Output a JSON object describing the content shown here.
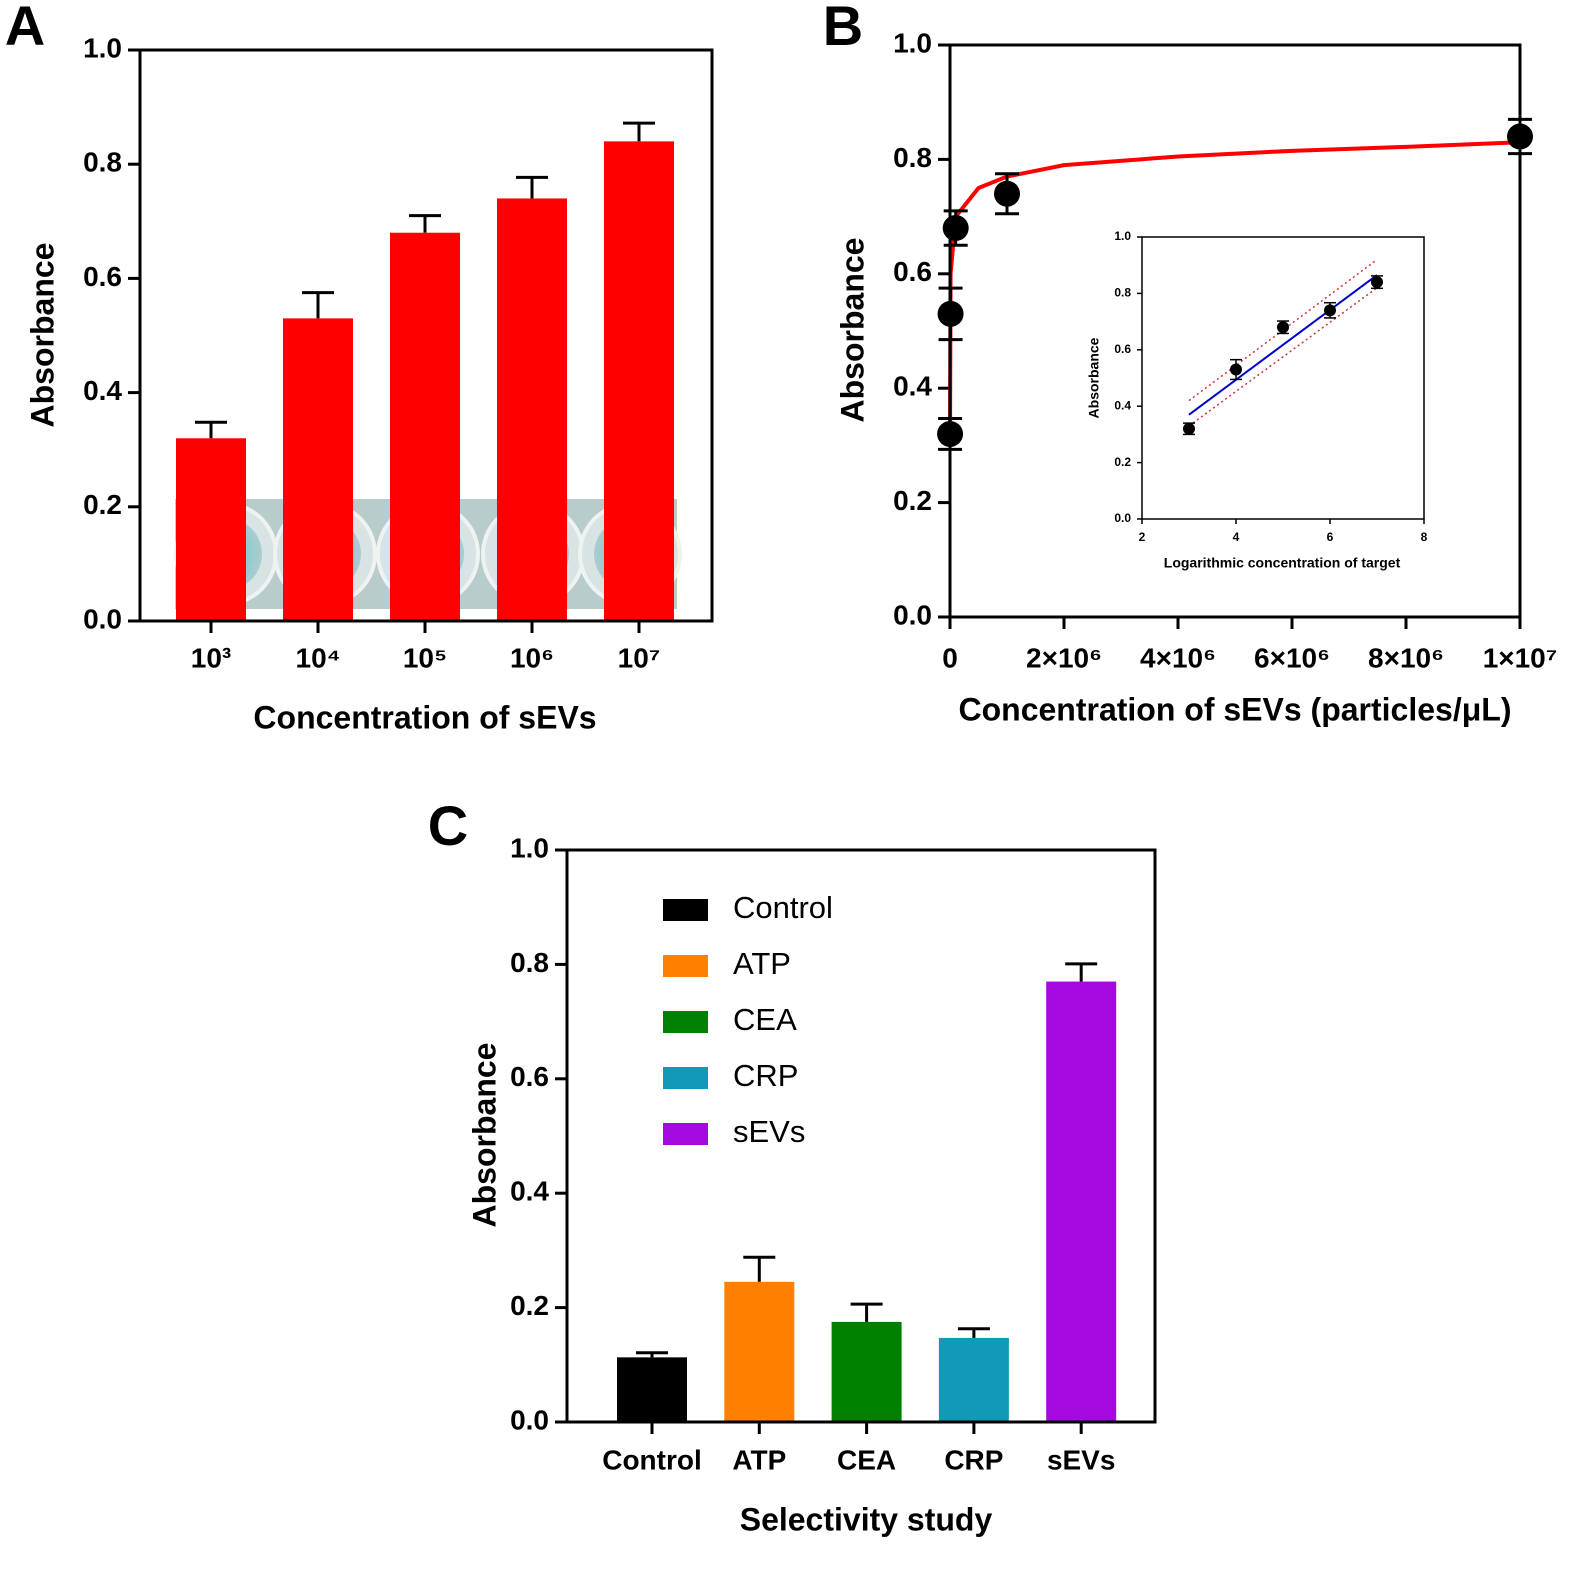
{
  "chart_data": [
    {
      "type": "bar",
      "panel": "A",
      "categories": [
        "10³",
        "10⁴",
        "10⁵",
        "10⁶",
        "10⁷"
      ],
      "values": [
        0.32,
        0.53,
        0.68,
        0.74,
        0.84
      ],
      "errors": [
        0.028,
        0.045,
        0.03,
        0.037,
        0.032
      ],
      "color": "#ff0000",
      "ylim": [
        0,
        1
      ],
      "yticks": [
        {
          "value": 0,
          "label": "0.0"
        },
        0.2,
        0.4,
        0.6,
        0.8,
        {
          "value": 1,
          "label": "1.0"
        }
      ],
      "xlabel": "Concentration of sEVs",
      "ylabel": "Absorbance"
    },
    {
      "type": "scatter",
      "panel": "B",
      "x": [
        1000,
        10000,
        100000,
        1000000,
        10000000
      ],
      "values": [
        0.32,
        0.53,
        0.68,
        0.74,
        0.84
      ],
      "errors": [
        0.027,
        0.045,
        0.03,
        0.035,
        0.03
      ],
      "color": "#000000",
      "fit": {
        "color": "#ff0000",
        "x": [
          1000,
          10000,
          100000,
          500000,
          1000000,
          2000000,
          4000000,
          6000000,
          8000000,
          10000000
        ],
        "values": [
          0.34,
          0.6,
          0.7,
          0.75,
          0.77,
          0.79,
          0.805,
          0.815,
          0.822,
          0.83
        ]
      },
      "xlim": [
        0,
        10000000
      ],
      "xticks": [
        0,
        {
          "value": 2000000,
          "label": "2×10⁶"
        },
        {
          "value": 4000000,
          "label": "4×10⁶"
        },
        {
          "value": 6000000,
          "label": "6×10⁶"
        },
        {
          "value": 8000000,
          "label": "8×10⁶"
        },
        {
          "value": 10000000,
          "label": "1×10⁷"
        }
      ],
      "ylim": [
        0,
        1
      ],
      "yticks": [
        {
          "value": 0,
          "label": "0.0"
        },
        0.2,
        0.4,
        0.6,
        0.8,
        {
          "value": 1,
          "label": "1.0"
        }
      ],
      "xlabel": "Concentration of sEVs (particles/μL)",
      "ylabel": "Absorbance"
    },
    {
      "type": "scatter",
      "x": [
        3,
        4,
        5,
        6,
        7
      ],
      "values": [
        0.32,
        0.53,
        0.68,
        0.74,
        0.84
      ],
      "errors": [
        0.02,
        0.035,
        0.022,
        0.027,
        0.022
      ],
      "color": "#000000",
      "fit": {
        "color": "#0000cc",
        "x": [
          3,
          7
        ],
        "values": [
          0.37,
          0.865
        ]
      },
      "bands": [
        {
          "color": "#cc3333",
          "x": [
            3,
            7
          ],
          "values": [
            0.42,
            0.92
          ]
        },
        {
          "color": "#cc3333",
          "x": [
            3,
            7
          ],
          "values": [
            0.33,
            0.82
          ]
        }
      ],
      "xlim": [
        2,
        8
      ],
      "xticks": [
        2,
        4,
        6,
        8
      ],
      "ylim": [
        0,
        1
      ],
      "yticks": [
        {
          "value": 0,
          "label": "0.0"
        },
        0.2,
        0.4,
        0.6,
        0.8,
        {
          "value": 1,
          "label": "1.0"
        }
      ],
      "xlabel": "Logarithmic concentration of target",
      "ylabel": "Absorbance"
    },
    {
      "type": "bar",
      "panel": "C",
      "categories": [
        "Control",
        "ATP",
        "CEA",
        "CRP",
        "sEVs"
      ],
      "values": [
        0.113,
        0.245,
        0.175,
        0.147,
        0.77
      ],
      "errors": [
        0.008,
        0.043,
        0.031,
        0.016,
        0.031
      ],
      "colors": [
        "#000000",
        "#ff8000",
        "#008000",
        "#1199b5",
        "#a40ae0"
      ],
      "legend": true,
      "ylim": [
        0,
        1
      ],
      "yticks": [
        {
          "value": 0,
          "label": "0.0"
        },
        0.2,
        0.4,
        0.6,
        0.8,
        {
          "value": 1,
          "label": "1.0"
        }
      ],
      "xlabel": "Selectivity study",
      "ylabel": "Absorbance"
    }
  ]
}
